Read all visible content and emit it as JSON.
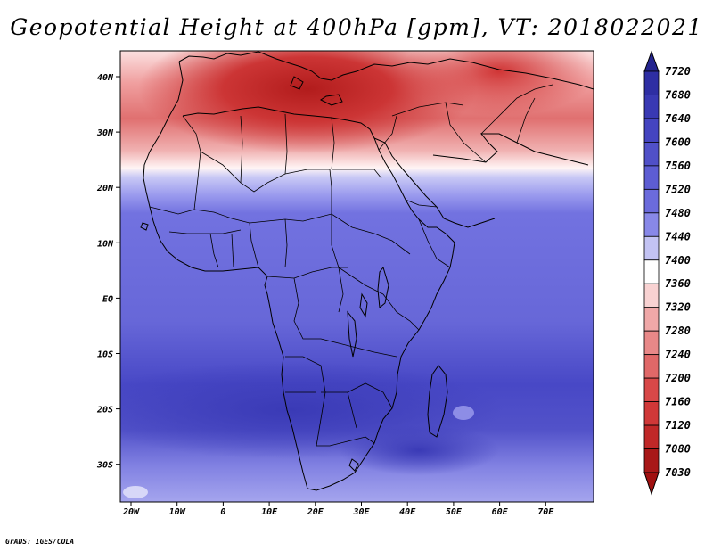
{
  "title": "Geopotential Height at 400hPa [gpm], VT: 2018022021",
  "credit": "GrADS: IGES/COLA",
  "map": {
    "region": "Africa and Middle East",
    "lon_range": [
      -23,
      80
    ],
    "lat_range": [
      -37,
      45
    ],
    "lon_ticks": [
      "20W",
      "10W",
      "0",
      "10E",
      "20E",
      "30E",
      "40E",
      "50E",
      "60E",
      "70E"
    ],
    "lat_ticks": [
      "40N",
      "30N",
      "20N",
      "10N",
      "EQ",
      "10S",
      "20S",
      "30S"
    ]
  },
  "colorbar": {
    "levels": [
      "7720",
      "7680",
      "7640",
      "7600",
      "7560",
      "7520",
      "7480",
      "7440",
      "7400",
      "7360",
      "7320",
      "7280",
      "7240",
      "7200",
      "7160",
      "7120",
      "7080",
      "7030"
    ],
    "colors": [
      "#24248f",
      "#2e2ea3",
      "#3939b3",
      "#4444c0",
      "#5050c8",
      "#5d5dd3",
      "#6b6bdc",
      "#8888e8",
      "#c3c3f3",
      "#ffffff",
      "#f8d2d2",
      "#f0a8a8",
      "#e88888",
      "#e06868",
      "#d84848",
      "#d03838",
      "#c02828",
      "#a81818"
    ]
  }
}
